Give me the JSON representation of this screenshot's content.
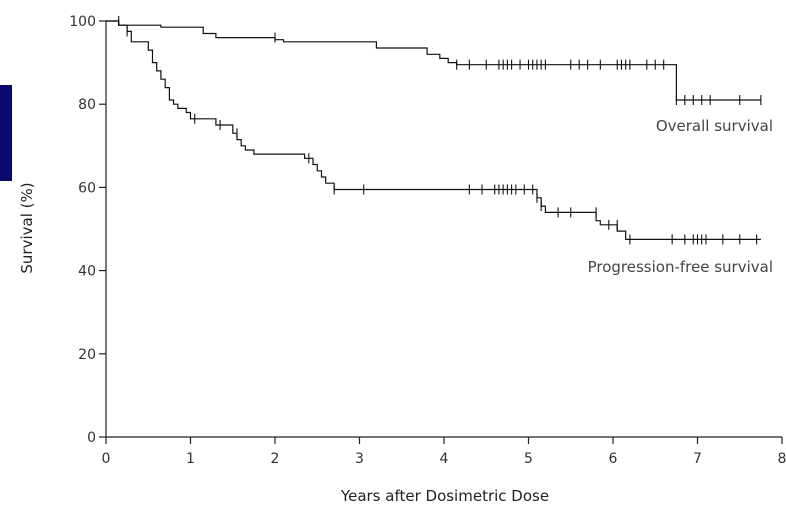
{
  "chart_data": {
    "type": "line",
    "xlabel": "Years after Dosimetric Dose",
    "ylabel": "Survival (%)",
    "xlim": [
      0,
      8
    ],
    "ylim": [
      0,
      100
    ],
    "xticks": [
      0,
      1,
      2,
      3,
      4,
      5,
      6,
      7,
      8
    ],
    "yticks": [
      0,
      20,
      40,
      60,
      80,
      100
    ],
    "grid": false,
    "colors": {
      "line": "#111111",
      "side_bar": "#0a0a6e"
    },
    "annotations": [
      {
        "text": "Overall survival",
        "series": 0
      },
      {
        "text": "Progression-free survival",
        "series": 1
      }
    ],
    "series": [
      {
        "name": "Overall survival",
        "step": [
          [
            0,
            100
          ],
          [
            0.15,
            100
          ],
          [
            0.15,
            99
          ],
          [
            0.65,
            99
          ],
          [
            0.65,
            98.5
          ],
          [
            1.15,
            98.5
          ],
          [
            1.15,
            97
          ],
          [
            1.3,
            97
          ],
          [
            1.3,
            96
          ],
          [
            2.0,
            96
          ],
          [
            2.0,
            95.5
          ],
          [
            2.1,
            95.5
          ],
          [
            2.1,
            95
          ],
          [
            3.2,
            95
          ],
          [
            3.2,
            93.5
          ],
          [
            3.8,
            93.5
          ],
          [
            3.8,
            92
          ],
          [
            3.95,
            92
          ],
          [
            3.95,
            91
          ],
          [
            4.05,
            91
          ],
          [
            4.05,
            90
          ],
          [
            4.15,
            90
          ],
          [
            4.15,
            89.5
          ],
          [
            6.75,
            89.5
          ],
          [
            6.75,
            81
          ],
          [
            7.75,
            81
          ]
        ],
        "censored": [
          [
            0.15,
            100
          ],
          [
            2.0,
            96
          ],
          [
            4.15,
            89.5
          ],
          [
            4.3,
            89.5
          ],
          [
            4.5,
            89.5
          ],
          [
            4.65,
            89.5
          ],
          [
            4.7,
            89.5
          ],
          [
            4.75,
            89.5
          ],
          [
            4.8,
            89.5
          ],
          [
            4.9,
            89.5
          ],
          [
            5.0,
            89.5
          ],
          [
            5.05,
            89.5
          ],
          [
            5.1,
            89.5
          ],
          [
            5.15,
            89.5
          ],
          [
            5.2,
            89.5
          ],
          [
            5.5,
            89.5
          ],
          [
            5.6,
            89.5
          ],
          [
            5.7,
            89.5
          ],
          [
            5.85,
            89.5
          ],
          [
            6.05,
            89.5
          ],
          [
            6.1,
            89.5
          ],
          [
            6.15,
            89.5
          ],
          [
            6.2,
            89.5
          ],
          [
            6.4,
            89.5
          ],
          [
            6.5,
            89.5
          ],
          [
            6.6,
            89.5
          ],
          [
            6.75,
            81
          ],
          [
            6.85,
            81
          ],
          [
            6.95,
            81
          ],
          [
            7.05,
            81
          ],
          [
            7.15,
            81
          ],
          [
            7.5,
            81
          ],
          [
            7.75,
            81
          ]
        ]
      },
      {
        "name": "Progression-free survival",
        "step": [
          [
            0,
            100
          ],
          [
            0.15,
            100
          ],
          [
            0.15,
            99
          ],
          [
            0.25,
            99
          ],
          [
            0.25,
            97.5
          ],
          [
            0.3,
            97.5
          ],
          [
            0.3,
            95
          ],
          [
            0.5,
            95
          ],
          [
            0.5,
            93
          ],
          [
            0.55,
            93
          ],
          [
            0.55,
            90
          ],
          [
            0.6,
            90
          ],
          [
            0.6,
            88
          ],
          [
            0.65,
            88
          ],
          [
            0.65,
            86
          ],
          [
            0.7,
            86
          ],
          [
            0.7,
            84
          ],
          [
            0.75,
            84
          ],
          [
            0.75,
            81
          ],
          [
            0.8,
            81
          ],
          [
            0.8,
            80
          ],
          [
            0.85,
            80
          ],
          [
            0.85,
            79
          ],
          [
            0.95,
            79
          ],
          [
            0.95,
            78
          ],
          [
            1.0,
            78
          ],
          [
            1.0,
            76.5
          ],
          [
            1.3,
            76.5
          ],
          [
            1.3,
            75
          ],
          [
            1.5,
            75
          ],
          [
            1.5,
            73
          ],
          [
            1.55,
            73
          ],
          [
            1.55,
            71.5
          ],
          [
            1.6,
            71.5
          ],
          [
            1.6,
            70
          ],
          [
            1.65,
            70
          ],
          [
            1.65,
            69
          ],
          [
            1.75,
            69
          ],
          [
            1.75,
            68
          ],
          [
            2.35,
            68
          ],
          [
            2.35,
            67
          ],
          [
            2.45,
            67
          ],
          [
            2.45,
            65.5
          ],
          [
            2.5,
            65.5
          ],
          [
            2.5,
            64
          ],
          [
            2.55,
            64
          ],
          [
            2.55,
            62.5
          ],
          [
            2.6,
            62.5
          ],
          [
            2.6,
            61
          ],
          [
            2.7,
            61
          ],
          [
            2.7,
            59.5
          ],
          [
            5.1,
            59.5
          ],
          [
            5.1,
            57.5
          ],
          [
            5.15,
            57.5
          ],
          [
            5.15,
            55.5
          ],
          [
            5.2,
            55.5
          ],
          [
            5.2,
            54
          ],
          [
            5.8,
            54
          ],
          [
            5.8,
            52
          ],
          [
            5.85,
            52
          ],
          [
            5.85,
            51
          ],
          [
            6.05,
            51
          ],
          [
            6.05,
            49.5
          ],
          [
            6.15,
            49.5
          ],
          [
            6.15,
            47.5
          ],
          [
            7.75,
            47.5
          ]
        ],
        "censored": [
          [
            0.25,
            97.5
          ],
          [
            1.05,
            76.5
          ],
          [
            1.35,
            75
          ],
          [
            1.55,
            73
          ],
          [
            2.4,
            67
          ],
          [
            2.7,
            59.5
          ],
          [
            3.05,
            59.5
          ],
          [
            4.3,
            59.5
          ],
          [
            4.45,
            59.5
          ],
          [
            4.6,
            59.5
          ],
          [
            4.65,
            59.5
          ],
          [
            4.7,
            59.5
          ],
          [
            4.75,
            59.5
          ],
          [
            4.8,
            59.5
          ],
          [
            4.85,
            59.5
          ],
          [
            4.95,
            59.5
          ],
          [
            5.05,
            59.5
          ],
          [
            5.1,
            57.5
          ],
          [
            5.15,
            55.5
          ],
          [
            5.35,
            54
          ],
          [
            5.5,
            54
          ],
          [
            5.8,
            54
          ],
          [
            5.95,
            51
          ],
          [
            6.05,
            51
          ],
          [
            6.2,
            47.5
          ],
          [
            6.7,
            47.5
          ],
          [
            6.85,
            47.5
          ],
          [
            6.95,
            47.5
          ],
          [
            7.0,
            47.5
          ],
          [
            7.05,
            47.5
          ],
          [
            7.1,
            47.5
          ],
          [
            7.3,
            47.5
          ],
          [
            7.5,
            47.5
          ],
          [
            7.7,
            47.5
          ]
        ]
      }
    ]
  }
}
